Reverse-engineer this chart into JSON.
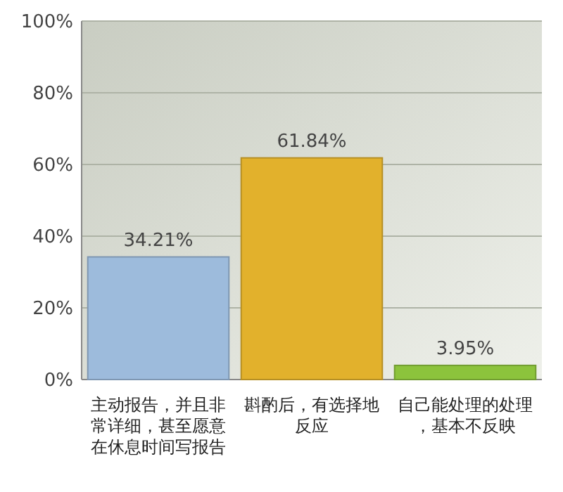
{
  "chart_data": {
    "type": "bar",
    "categories": [
      "主动报告，并且非常详细，甚至愿意在休息时间写报告",
      "斟酌后，有选择地反应",
      "自己能处理的处理，基本不反映"
    ],
    "values": [
      34.21,
      61.84,
      3.95
    ],
    "colors": [
      "#9dbbdc",
      "#e2b12c",
      "#8cc33c"
    ],
    "value_labels": [
      "34.21%",
      "61.84%",
      "3.95%"
    ],
    "ylim": [
      0,
      100
    ],
    "yticks": [
      {
        "value": 0,
        "label": "0%"
      },
      {
        "value": 20,
        "label": "20%"
      },
      {
        "value": 40,
        "label": "40%"
      },
      {
        "value": 60,
        "label": "60%"
      },
      {
        "value": 80,
        "label": "80%"
      },
      {
        "value": 100,
        "label": "100%"
      }
    ],
    "grid": "y"
  }
}
